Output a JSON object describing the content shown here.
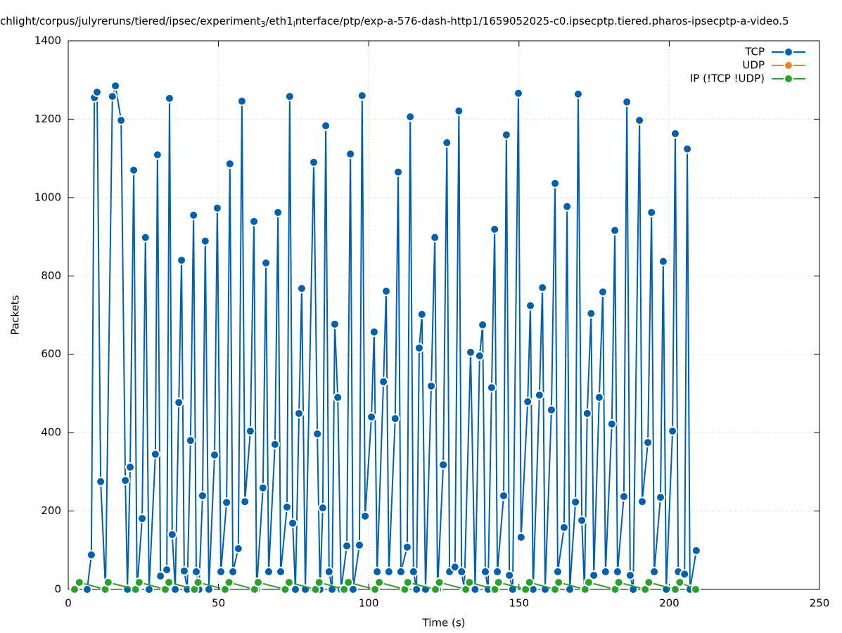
{
  "chart_data": {
    "type": "line",
    "title": [
      "chlight/corpus/julyreruns/tiered/ipsec/experiment",
      "3",
      "/eth1",
      "i",
      "nterface/ptp/exp-a-576-dash-http1/1659052025-c0.ipsecptp.tiered.pharos-ipsecptp-a-video.5"
    ],
    "x_label": "Time (s)",
    "y_label": "Packets",
    "xlim": [
      0,
      250
    ],
    "xticks": [
      0,
      50,
      100,
      150,
      200,
      250
    ],
    "ylim": [
      0,
      1400
    ],
    "yticks": [
      0,
      200,
      400,
      600,
      800,
      1000,
      1200,
      1400
    ],
    "grid": true,
    "legend": "top-right",
    "series": [
      {
        "name": "TCP",
        "color": "#0060ad",
        "x": [
          6.3,
          7.7,
          8.7,
          9.6,
          10.8,
          12.4,
          14.7,
          15.7,
          17.6,
          19.0,
          19.7,
          20.6,
          21.8,
          22.9,
          24.6,
          25.7,
          26.9,
          29.0,
          29.7,
          30.7,
          32.8,
          33.7,
          34.6,
          35.6,
          36.8,
          37.7,
          38.6,
          39.6,
          40.7,
          41.7,
          42.6,
          43.5,
          44.7,
          45.6,
          46.8,
          48.7,
          49.6,
          50.8,
          52.7,
          53.8,
          54.8,
          56.6,
          57.8,
          58.8,
          60.6,
          61.8,
          62.7,
          64.8,
          65.8,
          66.7,
          68.8,
          69.8,
          70.7,
          72.8,
          73.7,
          74.7,
          75.6,
          76.8,
          77.7,
          78.9,
          81.7,
          82.9,
          83.8,
          84.7,
          85.7,
          86.8,
          87.8,
          88.7,
          89.7,
          90.8,
          92.7,
          93.9,
          94.8,
          96.9,
          97.8,
          98.8,
          100.9,
          101.8,
          102.8,
          104.9,
          105.8,
          106.7,
          108.8,
          109.8,
          110.7,
          112.8,
          113.8,
          114.9,
          115.9,
          116.8,
          117.7,
          118.9,
          120.8,
          122.0,
          122.9,
          124.8,
          126.0,
          126.9,
          128.7,
          130.0,
          130.9,
          131.8,
          133.9,
          135.4,
          136.9,
          137.9,
          138.8,
          139.7,
          140.9,
          141.9,
          142.8,
          144.9,
          145.8,
          146.8,
          147.9,
          149.8,
          150.7,
          152.9,
          153.8,
          154.7,
          156.8,
          157.8,
          158.7,
          160.8,
          162.0,
          162.9,
          165.0,
          166.0,
          166.9,
          168.8,
          169.7,
          170.9,
          171.8,
          172.7,
          174.0,
          174.9,
          176.7,
          177.9,
          178.8,
          180.9,
          181.9,
          182.8,
          184.9,
          185.9,
          187.0,
          188.0,
          190.1,
          191.0,
          192.9,
          194.1,
          195.0,
          197.1,
          198.0,
          199.0,
          201.1,
          202.0,
          203.0,
          205.1,
          206.0,
          206.9,
          209.0
        ],
        "values": [
          0,
          88,
          1255,
          1269,
          275,
          0,
          1258,
          1285,
          1197,
          278,
          0,
          312,
          1070,
          0,
          181,
          898,
          0,
          345,
          1109,
          34,
          50,
          1253,
          140,
          0,
          477,
          840,
          47,
          0,
          380,
          955,
          45,
          0,
          239,
          889,
          0,
          343,
          973,
          45,
          222,
          1086,
          45,
          104,
          1246,
          224,
          404,
          939,
          0,
          259,
          833,
          45,
          370,
          962,
          45,
          210,
          1258,
          169,
          0,
          449,
          768,
          0,
          1090,
          397,
          0,
          208,
          1183,
          45,
          0,
          677,
          490,
          0,
          111,
          1111,
          0,
          113,
          1260,
          187,
          440,
          657,
          45,
          530,
          761,
          45,
          436,
          1065,
          45,
          108,
          1206,
          45,
          0,
          616,
          702,
          0,
          519,
          898,
          0,
          318,
          1140,
          45,
          57,
          1221,
          45,
          0,
          605,
          0,
          596,
          675,
          45,
          0,
          515,
          919,
          45,
          239,
          1160,
          36,
          0,
          1266,
          133,
          479,
          724,
          0,
          496,
          770,
          0,
          458,
          1036,
          45,
          158,
          977,
          0,
          223,
          1264,
          176,
          0,
          449,
          704,
          36,
          490,
          759,
          45,
          422,
          916,
          45,
          237,
          1244,
          36,
          0,
          1197,
          224,
          375,
          962,
          45,
          235,
          837,
          0,
          404,
          1163,
          45,
          39,
          1124,
          0,
          99
        ]
      },
      {
        "name": "UDP",
        "color": "#ff7f0e",
        "x": [],
        "values": []
      },
      {
        "name": "IP (!TCP  !UDP)",
        "color": "#2ca02c",
        "x": [
          2.1,
          3.7,
          12.3,
          13.3,
          22.4,
          23.6,
          32.3,
          33.5,
          42.0,
          43.2,
          52.2,
          53.5,
          62.0,
          63.2,
          72.2,
          73.5,
          82.3,
          83.5,
          91.8,
          93.2,
          102.1,
          103.5,
          112.0,
          113.0,
          122.2,
          123.5,
          132.3,
          133.5,
          142.0,
          143.2,
          152.2,
          153.5,
          162.0,
          163.2,
          172.0,
          173.2,
          182.0,
          183.2,
          192.0,
          193.2,
          202.0,
          203.5,
          208.8
        ],
        "values": [
          0,
          18,
          0,
          18,
          0,
          18,
          0,
          18,
          0,
          18,
          0,
          18,
          0,
          18,
          0,
          18,
          0,
          18,
          0,
          18,
          0,
          18,
          0,
          18,
          0,
          18,
          0,
          18,
          0,
          18,
          0,
          18,
          0,
          18,
          0,
          18,
          0,
          18,
          0,
          18,
          0,
          18,
          0
        ]
      }
    ]
  }
}
